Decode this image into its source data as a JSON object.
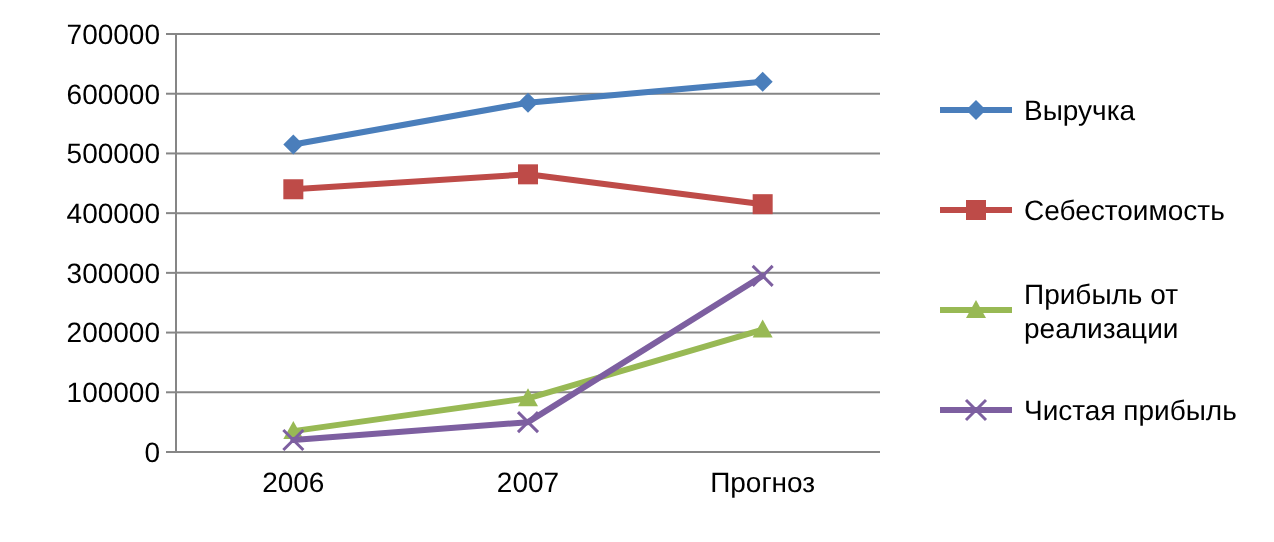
{
  "chart_data": {
    "type": "line",
    "categories": [
      "2006",
      "2007",
      "Прогноз"
    ],
    "series": [
      {
        "name": "Выручка",
        "color": "#4a7ebb",
        "marker": "diamond",
        "values": [
          515000,
          585000,
          620000
        ]
      },
      {
        "name": "Себестоимость",
        "color": "#be4b48",
        "marker": "square",
        "values": [
          440000,
          465000,
          415000
        ]
      },
      {
        "name": "Прибыль от реализации",
        "color": "#98b954",
        "marker": "triangle",
        "values": [
          35000,
          90000,
          205000
        ]
      },
      {
        "name": "Чистая прибыль",
        "color": "#7d5fa0",
        "marker": "cross",
        "values": [
          20000,
          50000,
          295000
        ]
      }
    ],
    "ylim": [
      0,
      700000
    ],
    "yticks": [
      0,
      100000,
      200000,
      300000,
      400000,
      500000,
      600000,
      700000
    ],
    "grid": "y",
    "legend": "right"
  }
}
